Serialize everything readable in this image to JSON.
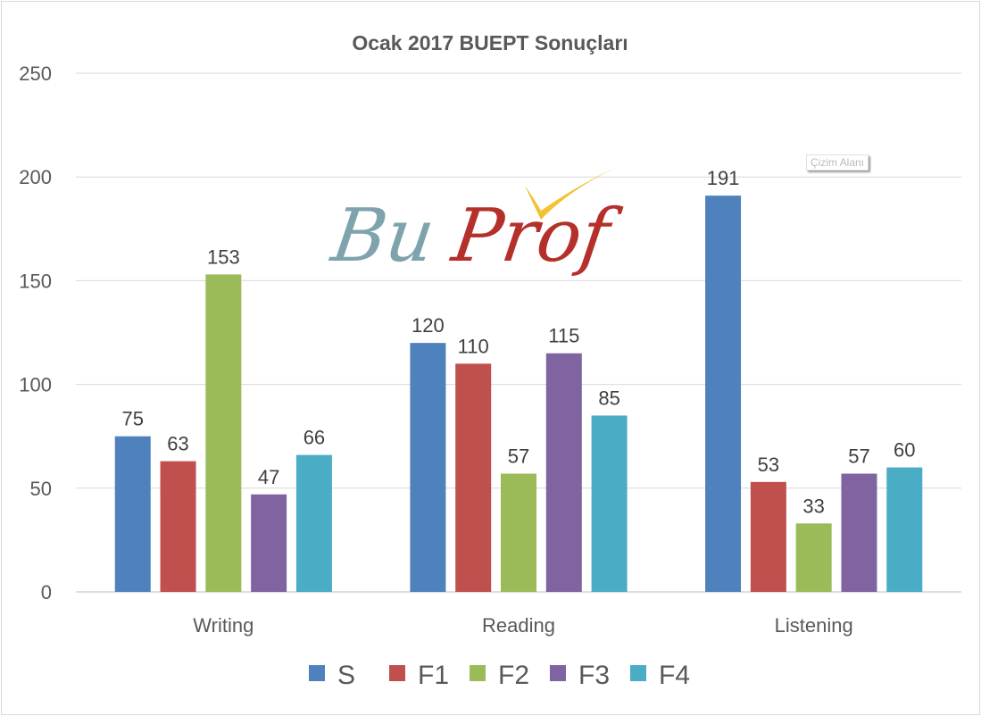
{
  "chart_data": {
    "type": "bar",
    "title": "Ocak 2017 BUEPT Sonuçları",
    "categories": [
      "Writing",
      "Reading",
      "Listening"
    ],
    "series": [
      {
        "name": "S",
        "color": "#4F81BD",
        "values": [
          75,
          120,
          191
        ]
      },
      {
        "name": "F1",
        "color": "#C0504D",
        "values": [
          63,
          110,
          53
        ]
      },
      {
        "name": "F2",
        "color": "#9BBB59",
        "values": [
          153,
          57,
          33
        ]
      },
      {
        "name": "F3",
        "color": "#8064A2",
        "values": [
          47,
          115,
          57
        ]
      },
      {
        "name": "F4",
        "color": "#4BACC6",
        "values": [
          66,
          85,
          60
        ]
      }
    ],
    "ylim": [
      0,
      250
    ],
    "yticks": [
      0,
      50,
      100,
      150,
      200,
      250
    ],
    "grid": true,
    "legend": "bottom",
    "data_labels": true
  },
  "logo": {
    "text": "BuProf",
    "colors": {
      "bu": "#7FA3AD",
      "prof": "#B5302A",
      "check": "#F2C232"
    }
  },
  "tooltip": "Çizim Alanı"
}
